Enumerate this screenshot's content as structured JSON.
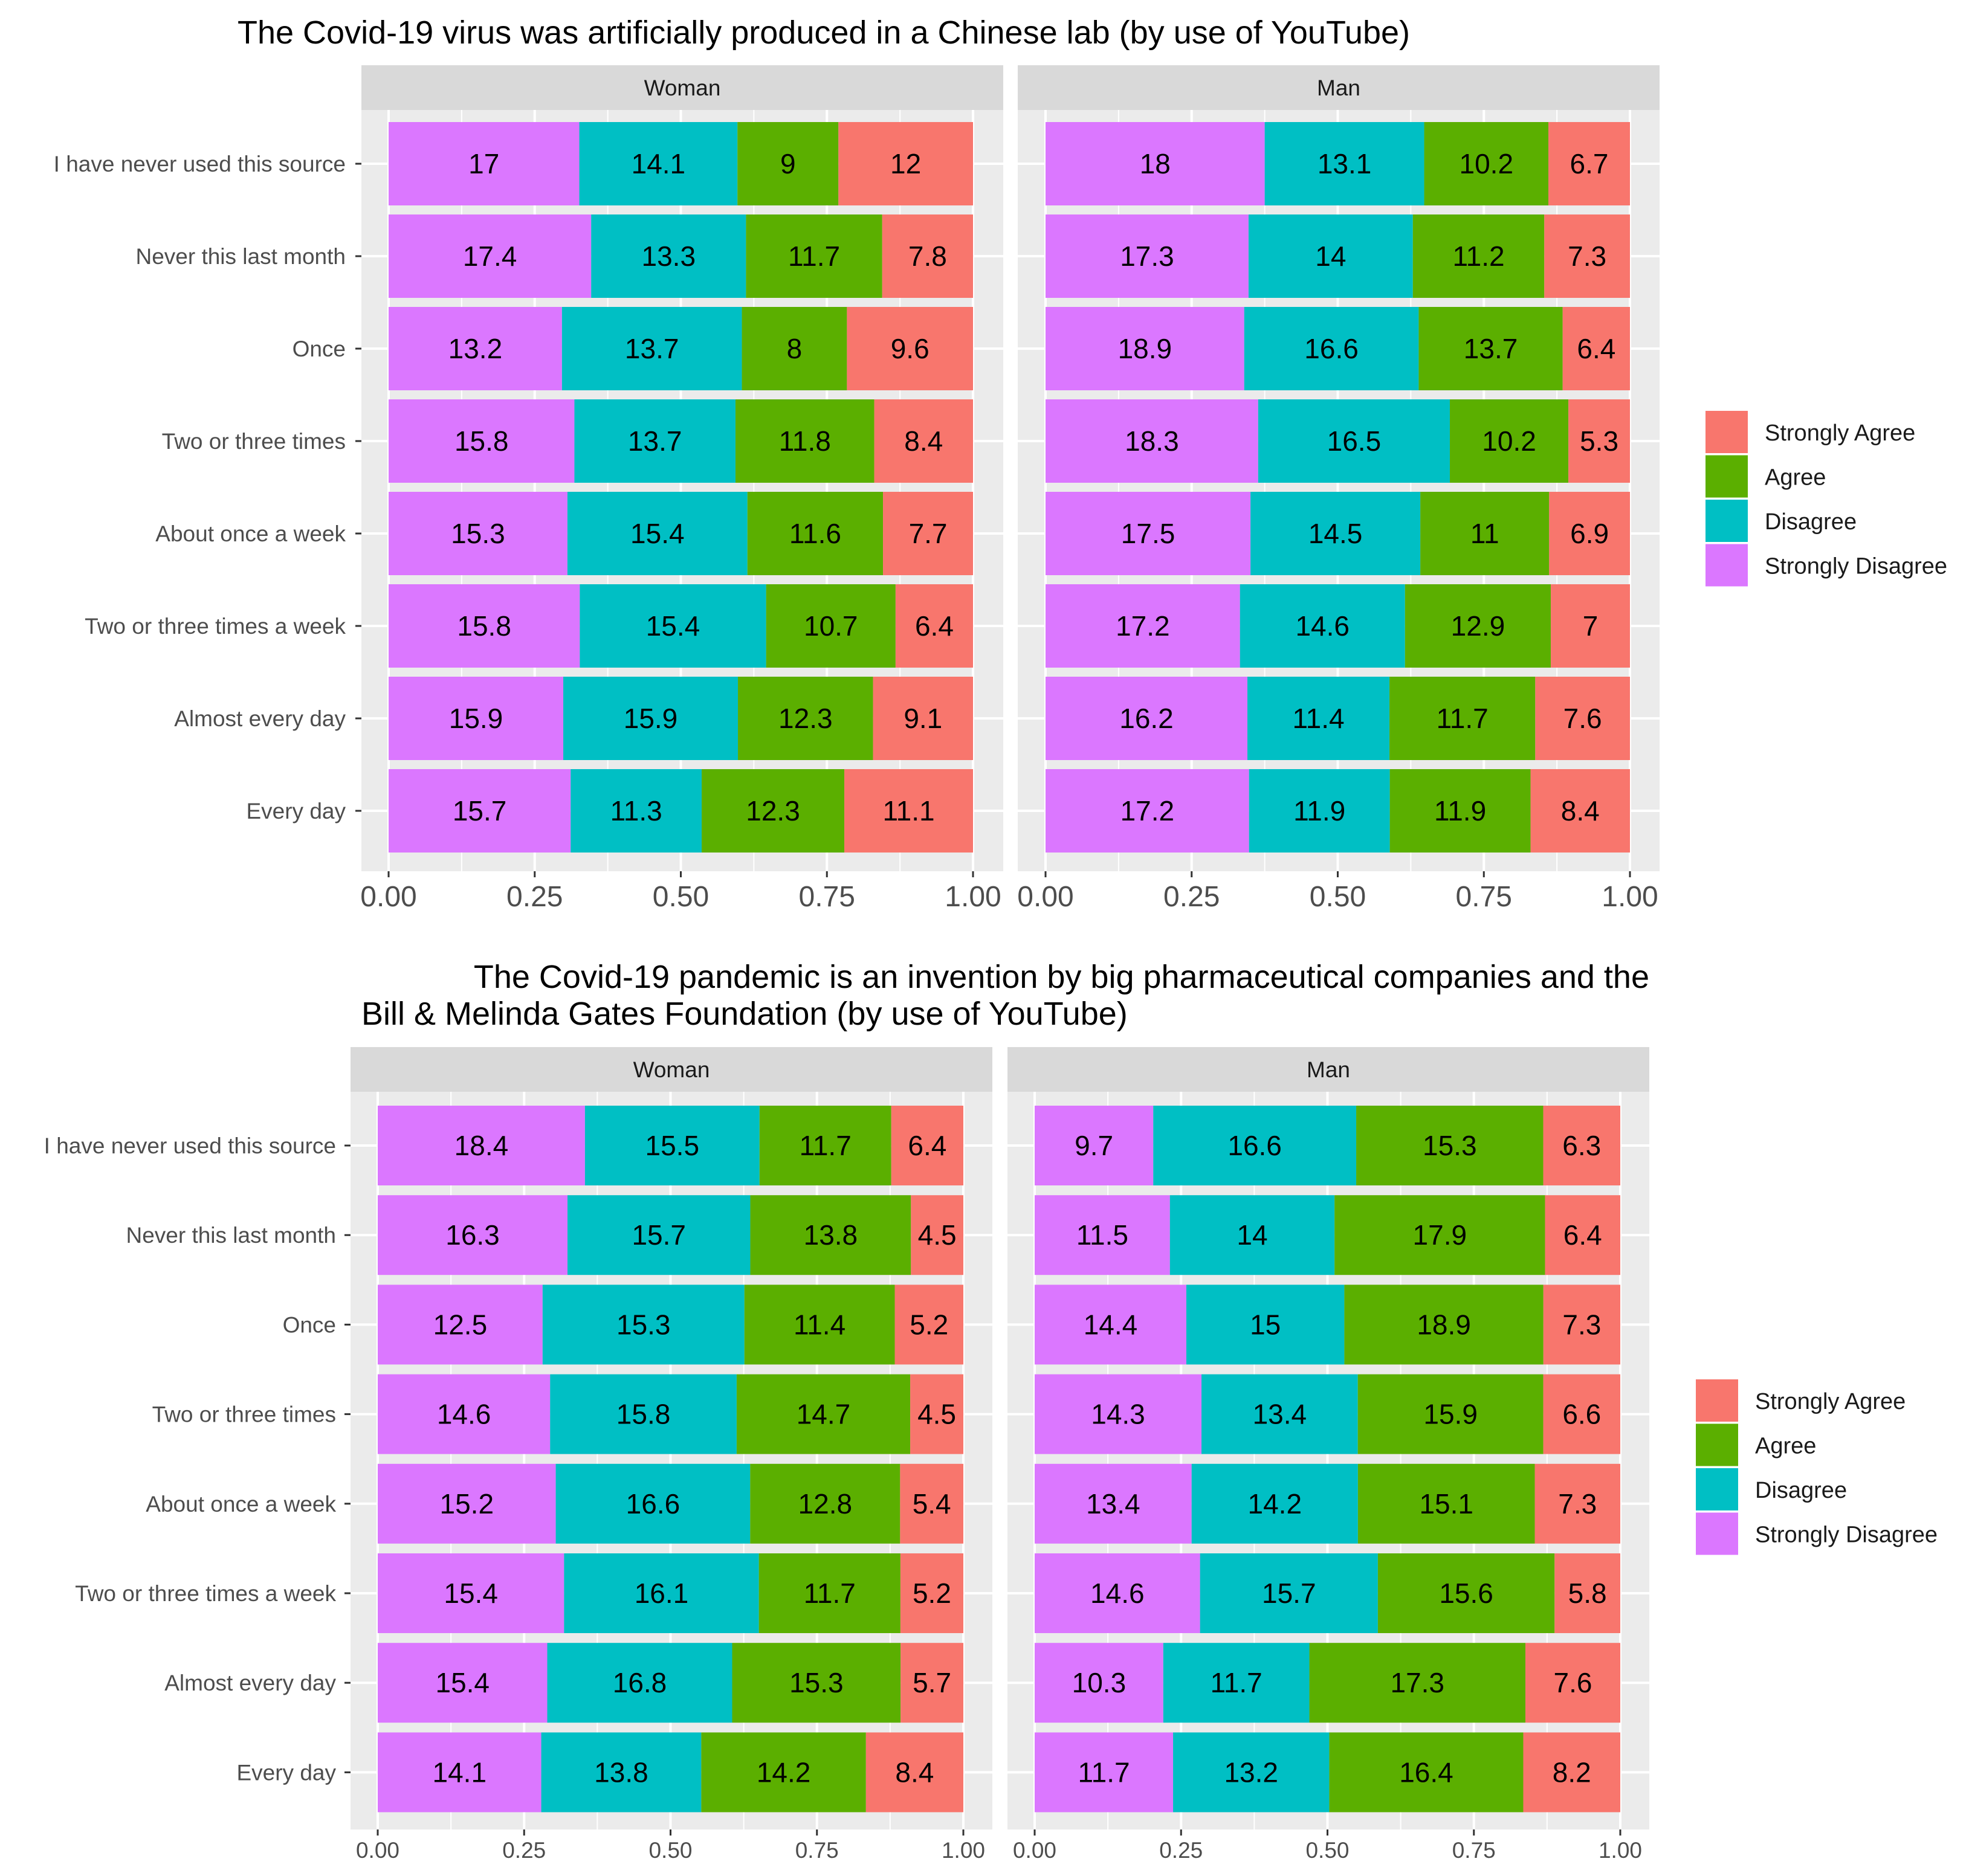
{
  "legend": {
    "title": "",
    "entries": [
      "Strongly Agree",
      "Agree",
      "Disagree",
      "Strongly Disagree"
    ]
  },
  "colors": {
    "Strongly Agree": "#F8766D",
    "Agree": "#5BAF00",
    "Disagree": "#00BFC4",
    "Strongly Disagree": "#DB77FF",
    "panel_bg": "#EBEBEB",
    "strip_bg": "#D9D9D9",
    "grid": "#FFFFFF"
  },
  "chart_data": [
    {
      "type": "bar",
      "orientation": "horizontal",
      "stacked": "fill",
      "title": "The Covid-19 virus was artificially produced in a Chinese lab (by use of YouTube)",
      "xlabel": "",
      "ylabel": "",
      "xlim": [
        0,
        1
      ],
      "xticks": [
        "0.00",
        "0.25",
        "0.50",
        "0.75",
        "1.00"
      ],
      "legend_position": "right",
      "categories": [
        "I have never used this source",
        "Never this last month",
        "Once",
        "Two or three times",
        "About once a week",
        "Two or three times a week",
        "Almost every day",
        "Every day"
      ],
      "facets": [
        {
          "name": "Woman",
          "series": [
            {
              "name": "Strongly Disagree",
              "values": [
                17,
                17.4,
                13.2,
                15.8,
                15.3,
                15.8,
                15.9,
                15.7
              ]
            },
            {
              "name": "Disagree",
              "values": [
                14.1,
                13.3,
                13.7,
                13.7,
                15.4,
                15.4,
                15.9,
                11.3
              ]
            },
            {
              "name": "Agree",
              "values": [
                9,
                11.7,
                8,
                11.8,
                11.6,
                10.7,
                12.3,
                12.3
              ]
            },
            {
              "name": "Strongly Agree",
              "values": [
                12,
                7.8,
                9.6,
                8.4,
                7.7,
                6.4,
                9.1,
                11.1
              ]
            }
          ]
        },
        {
          "name": "Man",
          "series": [
            {
              "name": "Strongly Disagree",
              "values": [
                18,
                17.3,
                18.9,
                18.3,
                17.5,
                17.2,
                16.2,
                17.2
              ]
            },
            {
              "name": "Disagree",
              "values": [
                13.1,
                14,
                16.6,
                16.5,
                14.5,
                14.6,
                11.4,
                11.9
              ]
            },
            {
              "name": "Agree",
              "values": [
                10.2,
                11.2,
                13.7,
                10.2,
                11,
                12.9,
                11.7,
                11.9
              ]
            },
            {
              "name": "Strongly Agree",
              "values": [
                6.7,
                7.3,
                6.4,
                5.3,
                6.9,
                7,
                7.6,
                8.4
              ]
            }
          ]
        }
      ]
    },
    {
      "type": "bar",
      "orientation": "horizontal",
      "stacked": "fill",
      "title": "The Covid-19 pandemic is an invention by big pharmaceutical companies and the Bill & Melinda Gates Foundation (by use of YouTube)",
      "title_lines": [
        "The Covid-19 pandemic is an invention by big pharmaceutical companies and the",
        "Bill & Melinda Gates Foundation (by use of YouTube)"
      ],
      "xlabel": "",
      "ylabel": "",
      "xlim": [
        0,
        1
      ],
      "xticks": [
        "0.00",
        "0.25",
        "0.50",
        "0.75",
        "1.00"
      ],
      "legend_position": "right",
      "categories": [
        "I have never used this source",
        "Never this last month",
        "Once",
        "Two or three times",
        "About once a week",
        "Two or three times a week",
        "Almost every day",
        "Every day"
      ],
      "facets": [
        {
          "name": "Woman",
          "series": [
            {
              "name": "Strongly Disagree",
              "values": [
                18.4,
                16.3,
                12.5,
                14.6,
                15.2,
                15.4,
                15.4,
                14.1
              ]
            },
            {
              "name": "Disagree",
              "values": [
                15.5,
                15.7,
                15.3,
                15.8,
                16.6,
                16.1,
                16.8,
                13.8
              ]
            },
            {
              "name": "Agree",
              "values": [
                11.7,
                13.8,
                11.4,
                14.7,
                12.8,
                11.7,
                15.3,
                14.2
              ]
            },
            {
              "name": "Strongly Agree",
              "values": [
                6.4,
                4.5,
                5.2,
                4.5,
                5.4,
                5.2,
                5.7,
                8.4
              ]
            }
          ]
        },
        {
          "name": "Man",
          "series": [
            {
              "name": "Strongly Disagree",
              "values": [
                9.7,
                11.5,
                14.4,
                14.3,
                13.4,
                14.6,
                10.3,
                11.7
              ]
            },
            {
              "name": "Disagree",
              "values": [
                16.6,
                14,
                15,
                13.4,
                14.2,
                15.7,
                11.7,
                13.2
              ]
            },
            {
              "name": "Agree",
              "values": [
                15.3,
                17.9,
                18.9,
                15.9,
                15.1,
                15.6,
                17.3,
                16.4
              ]
            },
            {
              "name": "Strongly Agree",
              "values": [
                6.3,
                6.4,
                7.3,
                6.6,
                7.3,
                5.8,
                7.6,
                8.2
              ]
            }
          ]
        }
      ]
    }
  ]
}
